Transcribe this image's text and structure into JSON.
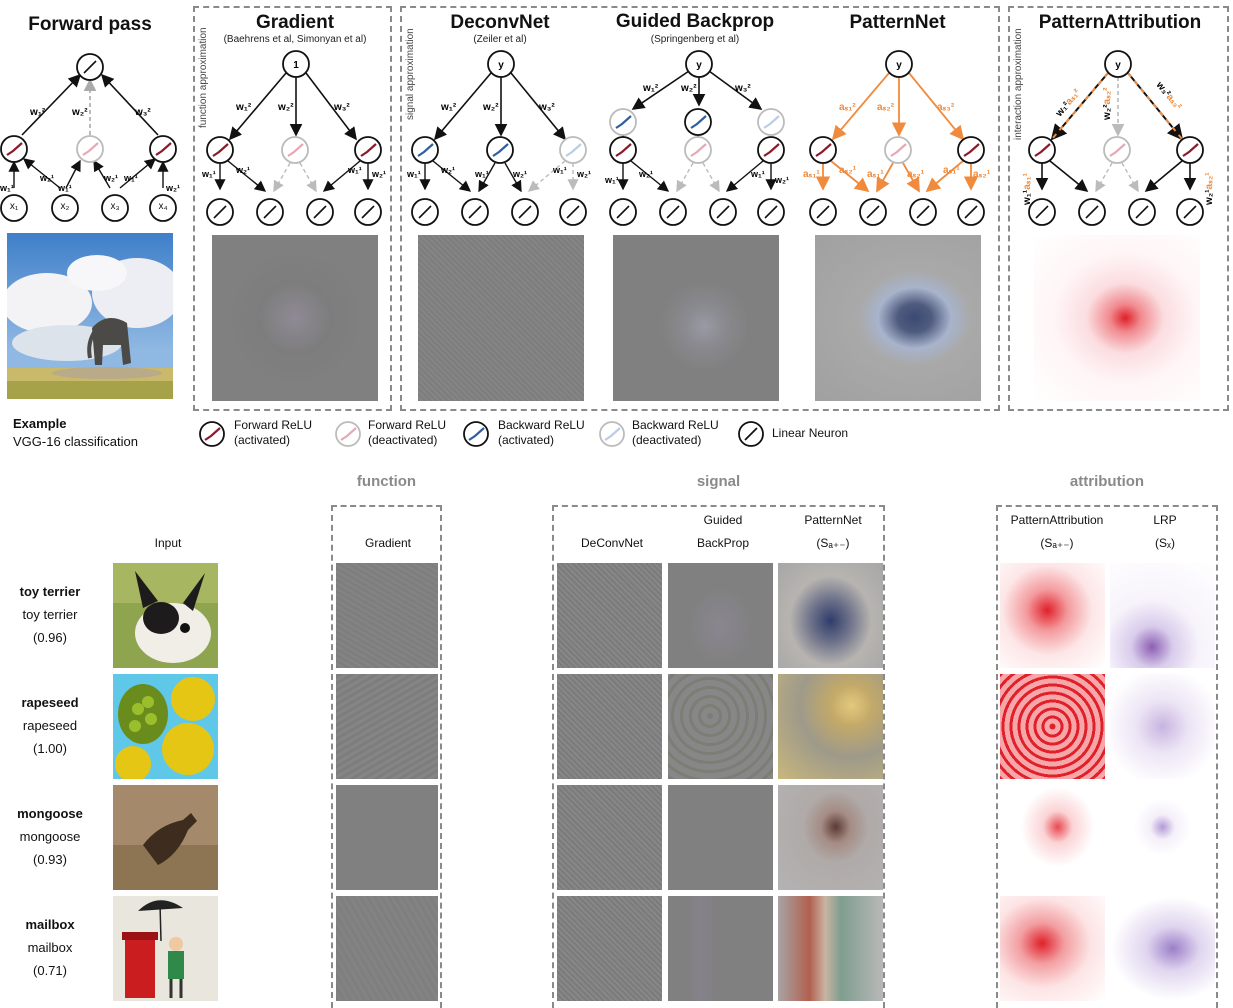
{
  "top": {
    "forward_pass": {
      "title": "Forward pass",
      "example_title": "Example",
      "example_sub": "VGG-16 classification",
      "inputs": [
        "x₁",
        "x₂",
        "x₃",
        "x₄"
      ]
    },
    "gradient": {
      "title": "Gradient",
      "citation": "(Baehrens et al, Simonyan et al)",
      "side_label": "function approximation",
      "root": "1"
    },
    "deconvnet": {
      "title": "DeconvNet",
      "citation": "(Zeiler et al)",
      "side_label": "signal approximation",
      "root": "y"
    },
    "guided_backprop": {
      "title": "Guided Backprop",
      "citation": "(Springenberg et al)",
      "root": "y"
    },
    "patternnet": {
      "title": "PatternNet",
      "root": "y"
    },
    "patternattribution": {
      "title": "PatternAttribution",
      "side_label": "interaction approximation",
      "root": "y"
    }
  },
  "legend": [
    {
      "label": "Forward ReLU\n(activated)",
      "icon": "relu-forward-active-icon"
    },
    {
      "label": "Forward ReLU\n(deactivated)",
      "icon": "relu-forward-inactive-icon"
    },
    {
      "label": "Backward ReLU\n(activated)",
      "icon": "relu-backward-active-icon"
    },
    {
      "label": "Backward ReLU\n(deactivated)",
      "icon": "relu-backward-inactive-icon"
    },
    {
      "label": "Linear Neuron",
      "icon": "linear-neuron-icon"
    }
  ],
  "bottom": {
    "groups": {
      "function": "function",
      "signal": "signal",
      "attribution": "attribution"
    },
    "columns": {
      "input": "Input",
      "gradient": "Gradient",
      "deconvnet": "DeConvNet",
      "guided_top": "Guided",
      "guided_bottom": "BackProp",
      "patternnet_top": "PatternNet",
      "patternnet_bottom": "(Sₐ₊₋)",
      "pattattr_top": "PatternAttribution",
      "pattattr_bottom": "(Sₐ₊₋)",
      "lrp_top": "LRP",
      "lrp_bottom": "(Sₓ)"
    },
    "rows": [
      {
        "label": "toy terrier",
        "prediction": "toy terrier",
        "score": "(0.96)"
      },
      {
        "label": "rapeseed",
        "prediction": "rapeseed",
        "score": "(1.00)"
      },
      {
        "label": "mongoose",
        "prediction": "mongoose",
        "score": "(0.93)"
      },
      {
        "label": "mailbox",
        "prediction": "mailbox",
        "score": "(0.71)"
      }
    ]
  },
  "colors": {
    "forward_active": "#8b1a2b",
    "forward_inactive": "#e6a9b4",
    "backward_active": "#2f5f9e",
    "backward_inactive": "#b9cde6",
    "pattern_orange": "#f08a3c",
    "box_dash": "#8a8a8a",
    "heat_red": "#e0202a"
  }
}
